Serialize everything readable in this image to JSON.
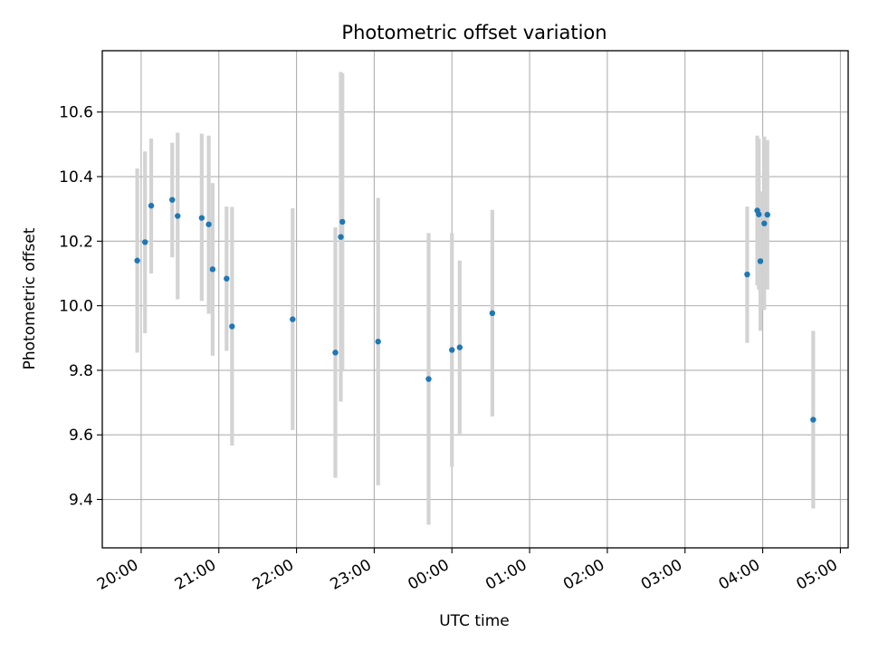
{
  "chart_data": {
    "type": "scatter",
    "title": "Photometric offset variation",
    "xlabel": "UTC time",
    "ylabel": "Photometric offset",
    "grid": true,
    "legend": "none",
    "colors": {
      "marker": "#1f77b4",
      "errorbar": "#d3d3d3",
      "grid": "#b0b0b0"
    },
    "x_unit": "hours after 00:00 UTC (day 1)",
    "xlim": [
      -4.5,
      5.1
    ],
    "ylim": [
      9.25,
      10.79
    ],
    "x_ticks": [
      -4,
      -3,
      -2,
      -1,
      0,
      1,
      2,
      3,
      4,
      5
    ],
    "x_tick_labels": [
      "20:00",
      "21:00",
      "22:00",
      "23:00",
      "00:00",
      "01:00",
      "02:00",
      "03:00",
      "04:00",
      "05:00"
    ],
    "y_ticks": [
      9.4,
      9.6,
      9.8,
      10.0,
      10.2,
      10.4,
      10.6
    ],
    "y_tick_labels": [
      "9.4",
      "9.6",
      "9.8",
      "10.0",
      "10.2",
      "10.4",
      "10.6"
    ],
    "series": [
      {
        "points": [
          {
            "x": -4.05,
            "y": 10.14,
            "err_low": 9.855,
            "err_high": 10.425
          },
          {
            "x": -3.95,
            "y": 10.197,
            "err_low": 9.915,
            "err_high": 10.478
          },
          {
            "x": -3.87,
            "y": 10.31,
            "err_low": 10.1,
            "err_high": 10.518
          },
          {
            "x": -3.6,
            "y": 10.328,
            "err_low": 10.15,
            "err_high": 10.505
          },
          {
            "x": -3.53,
            "y": 10.278,
            "err_low": 10.02,
            "err_high": 10.536
          },
          {
            "x": -3.22,
            "y": 10.272,
            "err_low": 10.015,
            "err_high": 10.533
          },
          {
            "x": -3.13,
            "y": 10.252,
            "err_low": 9.975,
            "err_high": 10.527
          },
          {
            "x": -3.08,
            "y": 10.113,
            "err_low": 9.845,
            "err_high": 10.38
          },
          {
            "x": -2.9,
            "y": 10.084,
            "err_low": 9.86,
            "err_high": 10.307
          },
          {
            "x": -2.83,
            "y": 9.936,
            "err_low": 9.567,
            "err_high": 10.306
          },
          {
            "x": -2.05,
            "y": 9.958,
            "err_low": 9.615,
            "err_high": 10.302
          },
          {
            "x": -1.5,
            "y": 9.855,
            "err_low": 9.467,
            "err_high": 10.243
          },
          {
            "x": -1.43,
            "y": 10.213,
            "err_low": 9.703,
            "err_high": 10.724
          },
          {
            "x": -1.41,
            "y": 10.26,
            "err_low": 9.8,
            "err_high": 10.72
          },
          {
            "x": -0.95,
            "y": 9.889,
            "err_low": 9.444,
            "err_high": 10.334
          },
          {
            "x": -0.3,
            "y": 9.773,
            "err_low": 9.322,
            "err_high": 10.225
          },
          {
            "x": 0.0,
            "y": 9.863,
            "err_low": 9.501,
            "err_high": 10.225
          },
          {
            "x": 0.1,
            "y": 9.871,
            "err_low": 9.603,
            "err_high": 10.14
          },
          {
            "x": 0.52,
            "y": 9.977,
            "err_low": 9.657,
            "err_high": 10.297
          },
          {
            "x": 3.8,
            "y": 10.097,
            "err_low": 9.885,
            "err_high": 10.307
          },
          {
            "x": 3.93,
            "y": 10.295,
            "err_low": 10.063,
            "err_high": 10.527
          },
          {
            "x": 3.95,
            "y": 10.283,
            "err_low": 10.05,
            "err_high": 10.517
          },
          {
            "x": 3.97,
            "y": 10.138,
            "err_low": 9.922,
            "err_high": 10.354
          },
          {
            "x": 4.02,
            "y": 10.255,
            "err_low": 9.987,
            "err_high": 10.524
          },
          {
            "x": 4.06,
            "y": 10.282,
            "err_low": 10.05,
            "err_high": 10.513
          },
          {
            "x": 4.65,
            "y": 9.647,
            "err_low": 9.372,
            "err_high": 9.922
          }
        ]
      }
    ]
  }
}
